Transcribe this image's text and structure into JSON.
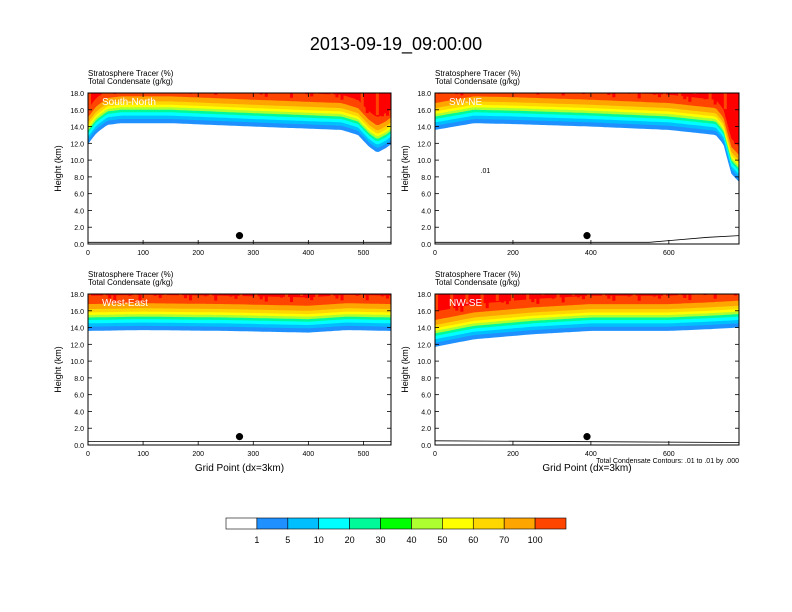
{
  "title": "2013-09-19_09:00:00",
  "colors": {
    "levels": [
      "#ffffff",
      "#1e90ff",
      "#00bfff",
      "#00ffff",
      "#00fa9a",
      "#00ff00",
      "#adff2f",
      "#ffff00",
      "#ffd700",
      "#ffa500",
      "#ff4500",
      "#ff0000"
    ],
    "contour": "#000000",
    "marker": "#000000"
  },
  "colorbar": {
    "labels": [
      "1",
      "5",
      "10",
      "20",
      "30",
      "40",
      "50",
      "60",
      "70",
      "100"
    ]
  },
  "footnote": "Total Condensate Contours: .01 to .01 by .000",
  "chart_data": [
    {
      "type": "heatmap",
      "label": "South-North",
      "line1": "Stratosphere Tracer   (%)",
      "line2": "Total Condensate   (g/kg)",
      "ylabel": "Height (km)",
      "xlabel": "",
      "xlim": [
        0,
        550
      ],
      "ylim": [
        0,
        18
      ],
      "xticks": [
        0,
        100,
        200,
        300,
        400,
        500
      ],
      "xtick_labels": [
        "0",
        "100",
        "200",
        "300",
        "400",
        "500"
      ],
      "yticks": [
        0,
        2,
        4,
        6,
        8,
        10,
        12,
        14,
        16,
        18
      ],
      "ytick_labels": [
        "0.0",
        "2.0",
        "4.0",
        "6.0",
        "8.0",
        "10.0",
        "12.0",
        "14.0",
        "16.0",
        "18.0"
      ],
      "tropopause_km": [
        [
          0,
          12.5
        ],
        [
          15,
          13.8
        ],
        [
          35,
          14.8
        ],
        [
          60,
          15.0
        ],
        [
          150,
          15.0
        ],
        [
          300,
          14.6
        ],
        [
          460,
          14.2
        ],
        [
          490,
          13.6
        ],
        [
          510,
          12.2
        ],
        [
          525,
          11.5
        ],
        [
          540,
          12.0
        ],
        [
          550,
          12.5
        ]
      ],
      "marker": {
        "x": 275,
        "y": 1.0
      },
      "terrain_km": [
        [
          0,
          0.2
        ],
        [
          550,
          0.2
        ]
      ],
      "annotations": []
    },
    {
      "type": "heatmap",
      "label": "SW-NE",
      "line1": "Stratosphere Tracer   (%)",
      "line2": "Total Condensate   (g/kg)",
      "ylabel": "Height (km)",
      "xlabel": "",
      "xlim": [
        0,
        780
      ],
      "ylim": [
        0,
        18
      ],
      "xticks": [
        0,
        200,
        400,
        600
      ],
      "xtick_labels": [
        "0",
        "200",
        "400",
        "600"
      ],
      "yticks": [
        0,
        2,
        4,
        6,
        8,
        10,
        12,
        14,
        16,
        18
      ],
      "ytick_labels": [
        "0.0",
        "2.0",
        "4.0",
        "6.0",
        "8.0",
        "10.0",
        "12.0",
        "14.0",
        "16.0",
        "18.0"
      ],
      "tropopause_km": [
        [
          0,
          14.2
        ],
        [
          100,
          15.0
        ],
        [
          200,
          14.9
        ],
        [
          400,
          14.6
        ],
        [
          600,
          14.2
        ],
        [
          720,
          13.6
        ],
        [
          740,
          12.5
        ],
        [
          760,
          9.0
        ],
        [
          780,
          8.0
        ]
      ],
      "marker": {
        "x": 390,
        "y": 1.0
      },
      "terrain_km": [
        [
          0,
          0.2
        ],
        [
          550,
          0.2
        ],
        [
          600,
          0.4
        ],
        [
          700,
          0.8
        ],
        [
          780,
          1.0
        ]
      ],
      "annotations": [
        ".01"
      ]
    },
    {
      "type": "heatmap",
      "label": "West-East",
      "line1": "Stratosphere Tracer   (%)",
      "line2": "Total Condensate   (g/kg)",
      "ylabel": "Height (km)",
      "xlabel": "Grid Point (dx=3km)",
      "xlim": [
        0,
        550
      ],
      "ylim": [
        0,
        18
      ],
      "xticks": [
        0,
        100,
        200,
        300,
        400,
        500
      ],
      "xtick_labels": [
        "0",
        "100",
        "200",
        "300",
        "400",
        "500"
      ],
      "yticks": [
        0,
        2,
        4,
        6,
        8,
        10,
        12,
        14,
        16,
        18
      ],
      "ytick_labels": [
        "0.0",
        "2.0",
        "4.0",
        "6.0",
        "8.0",
        "10.0",
        "12.0",
        "14.0",
        "16.0",
        "18.0"
      ],
      "tropopause_km": [
        [
          0,
          14.2
        ],
        [
          100,
          14.3
        ],
        [
          250,
          14.2
        ],
        [
          400,
          14.0
        ],
        [
          470,
          14.3
        ],
        [
          550,
          14.2
        ]
      ],
      "marker": {
        "x": 275,
        "y": 1.0
      },
      "terrain_km": [
        [
          0,
          0.4
        ],
        [
          550,
          0.4
        ]
      ],
      "annotations": []
    },
    {
      "type": "heatmap",
      "label": "NW-SE",
      "line1": "Stratosphere Tracer   (%)",
      "line2": "Total Condensate   (g/kg)",
      "ylabel": "Height (km)",
      "xlabel": "Grid Point (dx=3km)",
      "xlim": [
        0,
        780
      ],
      "ylim": [
        0,
        18
      ],
      "xticks": [
        0,
        200,
        400,
        600
      ],
      "xtick_labels": [
        "0",
        "200",
        "400",
        "600"
      ],
      "yticks": [
        0,
        2,
        4,
        6,
        8,
        10,
        12,
        14,
        16,
        18
      ],
      "ytick_labels": [
        "0.0",
        "2.0",
        "4.0",
        "6.0",
        "8.0",
        "10.0",
        "12.0",
        "14.0",
        "16.0",
        "18.0"
      ],
      "tropopause_km": [
        [
          0,
          12.3
        ],
        [
          100,
          13.2
        ],
        [
          250,
          13.8
        ],
        [
          400,
          14.2
        ],
        [
          600,
          14.2
        ],
        [
          700,
          14.4
        ],
        [
          780,
          14.6
        ]
      ],
      "marker": {
        "x": 390,
        "y": 1.0
      },
      "terrain_km": [
        [
          0,
          0.5
        ],
        [
          780,
          0.3
        ]
      ],
      "annotations": []
    }
  ]
}
